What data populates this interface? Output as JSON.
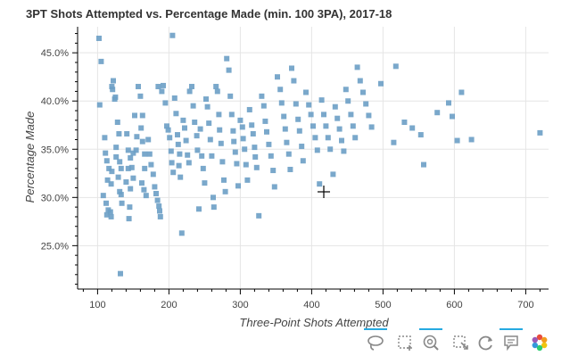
{
  "chart_data": {
    "type": "scatter",
    "title": "3PT Shots Attempted vs. Percentage Made (min. 100 3PA), 2017-18",
    "xlabel": "Three-Point Shots Attempted",
    "ylabel": "Percentage Made",
    "xlim": [
      72,
      732
    ],
    "ylim": [
      0.205,
      0.477
    ],
    "xticks": [
      100,
      200,
      300,
      400,
      500,
      600,
      700
    ],
    "yticks": [
      0.25,
      0.3,
      0.35,
      0.4,
      0.45
    ],
    "xtick_labels": [
      "100",
      "200",
      "300",
      "400",
      "500",
      "600",
      "700"
    ],
    "ytick_labels": [
      "25.0%",
      "30.0%",
      "35.0%",
      "40.0%",
      "45.0%"
    ],
    "grid": true,
    "marker_color": "#6b9ec5",
    "marker": "square",
    "points": [
      [
        102,
        0.465
      ],
      [
        105,
        0.441
      ],
      [
        112,
        0.294
      ],
      [
        108,
        0.302
      ],
      [
        113,
        0.282
      ],
      [
        115,
        0.287
      ],
      [
        118,
        0.285
      ],
      [
        119,
        0.28
      ],
      [
        116,
        0.33
      ],
      [
        113,
        0.338
      ],
      [
        111,
        0.346
      ],
      [
        114,
        0.318
      ],
      [
        119,
        0.314
      ],
      [
        120,
        0.327
      ],
      [
        110,
        0.362
      ],
      [
        103,
        0.396
      ],
      [
        122,
        0.421
      ],
      [
        120,
        0.415
      ],
      [
        125,
        0.404
      ],
      [
        124,
        0.402
      ],
      [
        121,
        0.412
      ],
      [
        128,
        0.378
      ],
      [
        130,
        0.366
      ],
      [
        126,
        0.352
      ],
      [
        126,
        0.342
      ],
      [
        131,
        0.337
      ],
      [
        133,
        0.33
      ],
      [
        129,
        0.321
      ],
      [
        131,
        0.306
      ],
      [
        133,
        0.303
      ],
      [
        134,
        0.294
      ],
      [
        132,
        0.221
      ],
      [
        141,
        0.366
      ],
      [
        143,
        0.349
      ],
      [
        146,
        0.341
      ],
      [
        143,
        0.33
      ],
      [
        140,
        0.316
      ],
      [
        150,
        0.346
      ],
      [
        148,
        0.331
      ],
      [
        150,
        0.32
      ],
      [
        146,
        0.309
      ],
      [
        145,
        0.29
      ],
      [
        144,
        0.278
      ],
      [
        152,
        0.385
      ],
      [
        155,
        0.363
      ],
      [
        154,
        0.349
      ],
      [
        157,
        0.415
      ],
      [
        160,
        0.405
      ],
      [
        163,
        0.385
      ],
      [
        161,
        0.372
      ],
      [
        163,
        0.358
      ],
      [
        166,
        0.345
      ],
      [
        166,
        0.33
      ],
      [
        162,
        0.315
      ],
      [
        165,
        0.308
      ],
      [
        168,
        0.302
      ],
      [
        171,
        0.36
      ],
      [
        173,
        0.345
      ],
      [
        175,
        0.334
      ],
      [
        178,
        0.324
      ],
      [
        180,
        0.311
      ],
      [
        182,
        0.304
      ],
      [
        184,
        0.297
      ],
      [
        186,
        0.291
      ],
      [
        187,
        0.286
      ],
      [
        188,
        0.28
      ],
      [
        185,
        0.415
      ],
      [
        190,
        0.41
      ],
      [
        192,
        0.416
      ],
      [
        195,
        0.398
      ],
      [
        197,
        0.374
      ],
      [
        199,
        0.37
      ],
      [
        201,
        0.362
      ],
      [
        203,
        0.348
      ],
      [
        204,
        0.336
      ],
      [
        206,
        0.326
      ],
      [
        205,
        0.468
      ],
      [
        208,
        0.403
      ],
      [
        210,
        0.387
      ],
      [
        212,
        0.365
      ],
      [
        213,
        0.355
      ],
      [
        215,
        0.345
      ],
      [
        214,
        0.333
      ],
      [
        216,
        0.321
      ],
      [
        218,
        0.263
      ],
      [
        220,
        0.38
      ],
      [
        222,
        0.372
      ],
      [
        224,
        0.359
      ],
      [
        226,
        0.344
      ],
      [
        228,
        0.336
      ],
      [
        229,
        0.41
      ],
      [
        232,
        0.415
      ],
      [
        234,
        0.395
      ],
      [
        236,
        0.378
      ],
      [
        239,
        0.364
      ],
      [
        240,
        0.349
      ],
      [
        242,
        0.288
      ],
      [
        244,
        0.371
      ],
      [
        246,
        0.343
      ],
      [
        248,
        0.33
      ],
      [
        250,
        0.315
      ],
      [
        252,
        0.402
      ],
      [
        254,
        0.394
      ],
      [
        256,
        0.377
      ],
      [
        258,
        0.36
      ],
      [
        260,
        0.343
      ],
      [
        262,
        0.3
      ],
      [
        263,
        0.29
      ],
      [
        266,
        0.415
      ],
      [
        268,
        0.41
      ],
      [
        270,
        0.386
      ],
      [
        271,
        0.37
      ],
      [
        273,
        0.356
      ],
      [
        275,
        0.337
      ],
      [
        277,
        0.318
      ],
      [
        279,
        0.306
      ],
      [
        281,
        0.444
      ],
      [
        284,
        0.432
      ],
      [
        286,
        0.405
      ],
      [
        288,
        0.386
      ],
      [
        290,
        0.369
      ],
      [
        291,
        0.358
      ],
      [
        293,
        0.347
      ],
      [
        295,
        0.335
      ],
      [
        297,
        0.312
      ],
      [
        300,
        0.38
      ],
      [
        303,
        0.373
      ],
      [
        304,
        0.361
      ],
      [
        306,
        0.35
      ],
      [
        308,
        0.334
      ],
      [
        310,
        0.318
      ],
      [
        313,
        0.391
      ],
      [
        316,
        0.375
      ],
      [
        318,
        0.366
      ],
      [
        320,
        0.352
      ],
      [
        321,
        0.342
      ],
      [
        323,
        0.331
      ],
      [
        326,
        0.281
      ],
      [
        330,
        0.405
      ],
      [
        333,
        0.395
      ],
      [
        335,
        0.379
      ],
      [
        337,
        0.368
      ],
      [
        340,
        0.355
      ],
      [
        343,
        0.343
      ],
      [
        346,
        0.328
      ],
      [
        348,
        0.311
      ],
      [
        352,
        0.425
      ],
      [
        356,
        0.412
      ],
      [
        358,
        0.398
      ],
      [
        361,
        0.384
      ],
      [
        363,
        0.371
      ],
      [
        365,
        0.357
      ],
      [
        368,
        0.345
      ],
      [
        370,
        0.329
      ],
      [
        372,
        0.434
      ],
      [
        375,
        0.421
      ],
      [
        378,
        0.397
      ],
      [
        381,
        0.381
      ],
      [
        383,
        0.369
      ],
      [
        386,
        0.353
      ],
      [
        388,
        0.338
      ],
      [
        392,
        0.409
      ],
      [
        396,
        0.396
      ],
      [
        399,
        0.386
      ],
      [
        402,
        0.374
      ],
      [
        405,
        0.362
      ],
      [
        408,
        0.349
      ],
      [
        411,
        0.314
      ],
      [
        414,
        0.401
      ],
      [
        417,
        0.386
      ],
      [
        420,
        0.374
      ],
      [
        423,
        0.362
      ],
      [
        426,
        0.35
      ],
      [
        430,
        0.324
      ],
      [
        433,
        0.394
      ],
      [
        436,
        0.382
      ],
      [
        439,
        0.371
      ],
      [
        442,
        0.359
      ],
      [
        445,
        0.348
      ],
      [
        448,
        0.412
      ],
      [
        451,
        0.4
      ],
      [
        455,
        0.386
      ],
      [
        458,
        0.374
      ],
      [
        461,
        0.362
      ],
      [
        464,
        0.435
      ],
      [
        468,
        0.421
      ],
      [
        472,
        0.409
      ],
      [
        476,
        0.397
      ],
      [
        480,
        0.385
      ],
      [
        484,
        0.373
      ],
      [
        497,
        0.418
      ],
      [
        515,
        0.357
      ],
      [
        518,
        0.436
      ],
      [
        530,
        0.378
      ],
      [
        541,
        0.372
      ],
      [
        553,
        0.365
      ],
      [
        557,
        0.334
      ],
      [
        576,
        0.388
      ],
      [
        592,
        0.398
      ],
      [
        597,
        0.384
      ],
      [
        604,
        0.359
      ],
      [
        610,
        0.409
      ],
      [
        624,
        0.36
      ],
      [
        720,
        0.367
      ]
    ]
  },
  "toolbar": {
    "tools": [
      {
        "name": "lasso-select-tool",
        "active": true
      },
      {
        "name": "box-select-tool",
        "active": false
      },
      {
        "name": "wheel-zoom-tool",
        "active": true
      },
      {
        "name": "box-zoom-tool",
        "active": false
      },
      {
        "name": "reset-tool",
        "active": false
      },
      {
        "name": "hover-tool",
        "active": true
      },
      {
        "name": "bokeh-logo",
        "active": false
      }
    ],
    "active_color": "#26aae1"
  }
}
